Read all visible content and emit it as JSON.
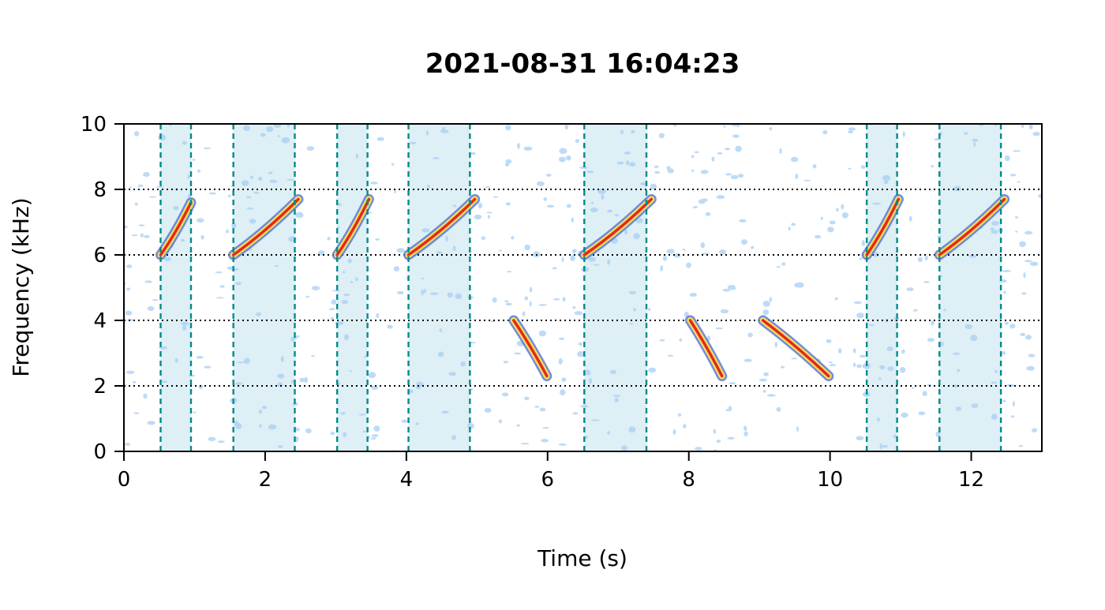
{
  "chart_data": {
    "type": "spectrogram",
    "title": "2021-08-31 16:04:23",
    "xlabel": "Time (s)",
    "ylabel": "Frequency (kHz)",
    "xlim": [
      0,
      13
    ],
    "ylim": [
      0,
      10
    ],
    "xticks": [
      0,
      2,
      4,
      6,
      8,
      10,
      12
    ],
    "yticks": [
      0,
      2,
      4,
      6,
      8,
      10
    ],
    "horizontal_reference_lines_khz": [
      2,
      4,
      6,
      8
    ],
    "selections": [
      {
        "start": 0.52,
        "end": 0.95
      },
      {
        "start": 1.55,
        "end": 2.42
      },
      {
        "start": 3.02,
        "end": 3.45
      },
      {
        "start": 4.03,
        "end": 4.9
      },
      {
        "start": 6.52,
        "end": 7.4
      },
      {
        "start": 10.52,
        "end": 10.95
      },
      {
        "start": 11.55,
        "end": 12.42
      }
    ],
    "calls": [
      {
        "t_start": 0.52,
        "t_end": 0.95,
        "f_start": 6.0,
        "f_end": 7.6
      },
      {
        "t_start": 1.55,
        "t_end": 2.47,
        "f_start": 6.0,
        "f_end": 7.7
      },
      {
        "t_start": 3.02,
        "t_end": 3.47,
        "f_start": 6.0,
        "f_end": 7.7
      },
      {
        "t_start": 4.03,
        "t_end": 4.97,
        "f_start": 6.0,
        "f_end": 7.7
      },
      {
        "t_start": 5.52,
        "t_end": 5.99,
        "f_start": 4.0,
        "f_end": 2.3
      },
      {
        "t_start": 6.52,
        "t_end": 7.47,
        "f_start": 6.0,
        "f_end": 7.7
      },
      {
        "t_start": 8.02,
        "t_end": 8.47,
        "f_start": 4.0,
        "f_end": 2.3
      },
      {
        "t_start": 9.05,
        "t_end": 9.98,
        "f_start": 4.0,
        "f_end": 2.3
      },
      {
        "t_start": 10.52,
        "t_end": 10.97,
        "f_start": 6.0,
        "f_end": 7.7
      },
      {
        "t_start": 11.55,
        "t_end": 12.47,
        "f_start": 6.0,
        "f_end": 7.7
      }
    ],
    "grid": false,
    "colors": {
      "selection_fill": "#deeff5",
      "selection_border": "#008b8b",
      "call_core": "#e8261d",
      "call_mid": "#f1e15a",
      "call_outer": "#5b77d6",
      "noise": "#a8cff5",
      "reference_line": "#000000",
      "axis": "#000000"
    }
  }
}
